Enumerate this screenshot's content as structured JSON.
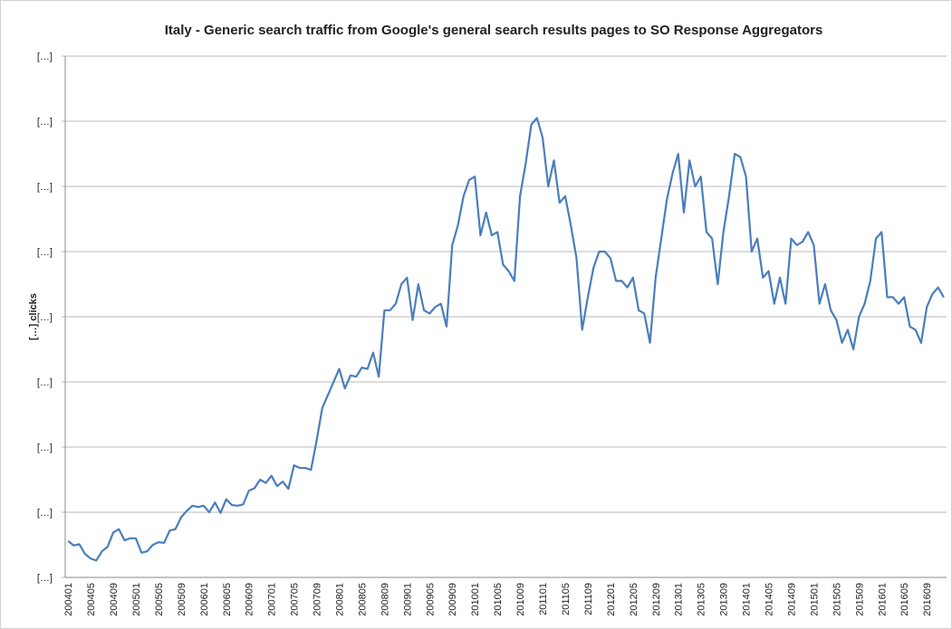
{
  "chart_data": {
    "type": "line",
    "title": "Italy - Generic search traffic from Google's general search results pages to SO Response Aggregators",
    "y_label": "[…] clicks",
    "categories": [
      "200401",
      null,
      null,
      null,
      "200405",
      null,
      null,
      null,
      "200409",
      null,
      null,
      null,
      "200501",
      null,
      null,
      null,
      "200505",
      null,
      null,
      null,
      "200509",
      null,
      null,
      null,
      "200601",
      null,
      null,
      null,
      "200605",
      null,
      null,
      null,
      "200609",
      null,
      null,
      null,
      "200701",
      null,
      null,
      null,
      "200705",
      null,
      null,
      null,
      "200709",
      null,
      null,
      null,
      "200801",
      null,
      null,
      null,
      "200805",
      null,
      null,
      null,
      "200809",
      null,
      null,
      null,
      "200901",
      null,
      null,
      null,
      "200905",
      null,
      null,
      null,
      "200909",
      null,
      null,
      null,
      "201001",
      null,
      null,
      null,
      "201005",
      null,
      null,
      null,
      "201009",
      null,
      null,
      null,
      "201101",
      null,
      null,
      null,
      "201105",
      null,
      null,
      null,
      "201109",
      null,
      null,
      null,
      "201201",
      null,
      null,
      null,
      "201205",
      null,
      null,
      null,
      "201209",
      null,
      null,
      null,
      "201301",
      null,
      null,
      null,
      "201305",
      null,
      null,
      null,
      "201309",
      null,
      null,
      null,
      "201401",
      null,
      null,
      null,
      "201405",
      null,
      null,
      null,
      "201409",
      null,
      null,
      null,
      "201501",
      null,
      null,
      null,
      "201505",
      null,
      null,
      null,
      "201509",
      null,
      null,
      null,
      "201601",
      null,
      null,
      null,
      "201605",
      null,
      null,
      null,
      "201609",
      null,
      null,
      null
    ],
    "series": [
      {
        "color": "#4a7ebb",
        "values": [
          0.56,
          0.49,
          0.51,
          0.36,
          0.29,
          0.26,
          0.4,
          0.47,
          0.69,
          0.74,
          0.57,
          0.6,
          0.6,
          0.38,
          0.4,
          0.5,
          0.54,
          0.53,
          0.72,
          0.74,
          0.92,
          1.02,
          1.1,
          1.08,
          1.1,
          1.0,
          1.15,
          0.99,
          1.2,
          1.11,
          1.1,
          1.12,
          1.33,
          1.37,
          1.5,
          1.45,
          1.56,
          1.4,
          1.47,
          1.36,
          1.72,
          1.68,
          1.68,
          1.65,
          2.1,
          2.6,
          2.8,
          3.0,
          3.2,
          2.9,
          3.1,
          3.08,
          3.22,
          3.2,
          3.45,
          3.08,
          4.1,
          4.1,
          4.2,
          4.5,
          4.6,
          3.95,
          4.5,
          4.1,
          4.05,
          4.15,
          4.2,
          3.85,
          5.1,
          5.4,
          5.85,
          6.1,
          6.15,
          5.25,
          5.6,
          5.25,
          5.3,
          4.8,
          4.7,
          4.55,
          5.85,
          6.35,
          6.95,
          7.05,
          6.75,
          6.0,
          6.4,
          5.75,
          5.85,
          5.4,
          4.9,
          3.8,
          4.3,
          4.75,
          5.0,
          5.0,
          4.9,
          4.55,
          4.55,
          4.45,
          4.6,
          4.1,
          4.05,
          3.6,
          4.6,
          5.2,
          5.8,
          6.2,
          6.5,
          5.6,
          6.4,
          6.0,
          6.15,
          5.3,
          5.2,
          4.5,
          5.3,
          5.85,
          6.5,
          6.45,
          6.15,
          5.0,
          5.2,
          4.6,
          4.7,
          4.2,
          4.6,
          4.2,
          5.2,
          5.1,
          5.15,
          5.3,
          5.1,
          4.2,
          4.5,
          4.1,
          3.95,
          3.6,
          3.8,
          3.5,
          4.0,
          4.2,
          4.55,
          5.2,
          5.3,
          4.3,
          4.3,
          4.2,
          4.3,
          3.85,
          3.8,
          3.6,
          4.15,
          4.35,
          4.45,
          4.3
        ]
      }
    ],
    "ylim": [
      0,
      8
    ],
    "yticks": [
      {
        "value": 0,
        "label": "[…]"
      },
      {
        "value": 1,
        "label": "[…]"
      },
      {
        "value": 2,
        "label": "[…]"
      },
      {
        "value": 3,
        "label": "[…]"
      },
      {
        "value": 4,
        "label": "[…]"
      },
      {
        "value": 5,
        "label": "[…]"
      },
      {
        "value": 6,
        "label": "[…]"
      },
      {
        "value": 7,
        "label": "[…]"
      },
      {
        "value": 8,
        "label": "[…]"
      }
    ],
    "grid": true
  }
}
